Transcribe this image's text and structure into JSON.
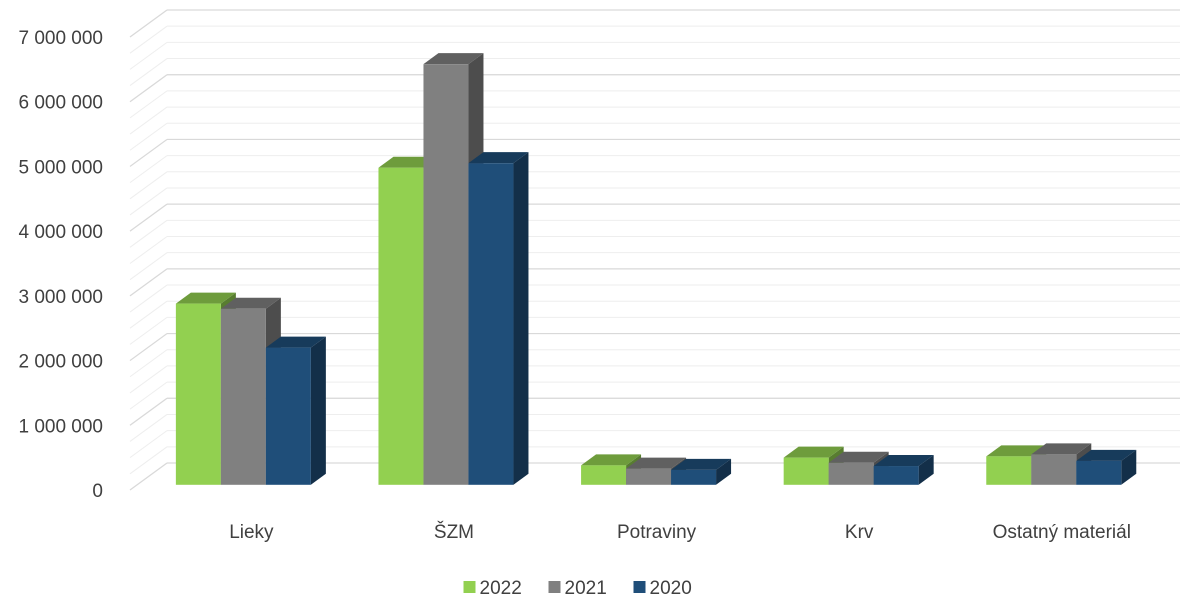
{
  "chart_data": {
    "type": "bar",
    "categories": [
      "Lieky",
      "ŠZM",
      "Potraviny",
      "Krv",
      "Ostatný materiál"
    ],
    "series": [
      {
        "name": "2022",
        "color": "#92d050",
        "values": [
          2800000,
          4900000,
          300000,
          420000,
          440000
        ]
      },
      {
        "name": "2021",
        "color": "#808080",
        "values": [
          2720000,
          6500000,
          250000,
          340000,
          470000
        ]
      },
      {
        "name": "2020",
        "color": "#1f4e79",
        "values": [
          2120000,
          4970000,
          230000,
          290000,
          370000
        ]
      }
    ],
    "ylim": [
      0,
      7000000
    ],
    "yticks": [
      0,
      1000000,
      2000000,
      3000000,
      4000000,
      5000000,
      6000000,
      7000000
    ],
    "ytick_labels": [
      "0",
      "1 000 000",
      "2 000 000",
      "3 000 000",
      "4 000 000",
      "5 000 000",
      "6 000 000",
      "7 000 000"
    ],
    "grid": true,
    "legend_position": "bottom",
    "style": "3d-clustered-column"
  }
}
